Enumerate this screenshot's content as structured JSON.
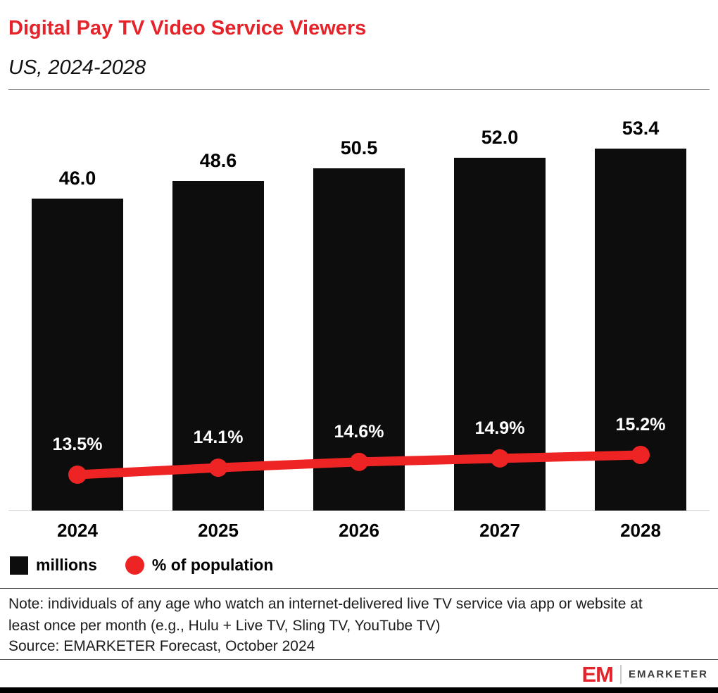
{
  "header": {
    "title": "Digital Pay TV Video Service Viewers",
    "subtitle": "US, 2024-2028"
  },
  "colors": {
    "title_red": "#e5232b",
    "bar_black": "#0d0d0d",
    "line_red": "#ee2424",
    "logo_red": "#e5232b"
  },
  "chart_data": {
    "type": "bar",
    "title": "Digital Pay TV Video Service Viewers",
    "subtitle": "US, 2024-2028",
    "categories": [
      "2024",
      "2025",
      "2026",
      "2027",
      "2028"
    ],
    "series": [
      {
        "name": "millions",
        "type": "bar",
        "color": "#0d0d0d",
        "values": [
          46.0,
          48.6,
          50.5,
          52.0,
          53.4
        ],
        "labels": [
          "46.0",
          "48.6",
          "50.5",
          "52.0",
          "53.4"
        ]
      },
      {
        "name": "% of population",
        "type": "line",
        "color": "#ee2424",
        "values": [
          13.5,
          14.1,
          14.6,
          14.9,
          15.2
        ],
        "labels": [
          "13.5%",
          "14.1%",
          "14.6%",
          "14.9%",
          "15.2%"
        ]
      }
    ],
    "ylim": [
      0,
      60
    ],
    "grid": false,
    "legend_position": "bottom"
  },
  "legend": [
    {
      "label": "millions",
      "color": "#0d0d0d",
      "shape": "square"
    },
    {
      "label": "% of population",
      "color": "#ee2424",
      "shape": "circle"
    }
  ],
  "note": "Note: individuals of any age who watch an internet-delivered live TV service via app or website at least once per month (e.g., Hulu + Live TV, Sling TV, YouTube TV)",
  "source": "Source: EMARKETER Forecast, October 2024",
  "footer": {
    "logo_text": "EM",
    "brand": "EMARKETER"
  }
}
